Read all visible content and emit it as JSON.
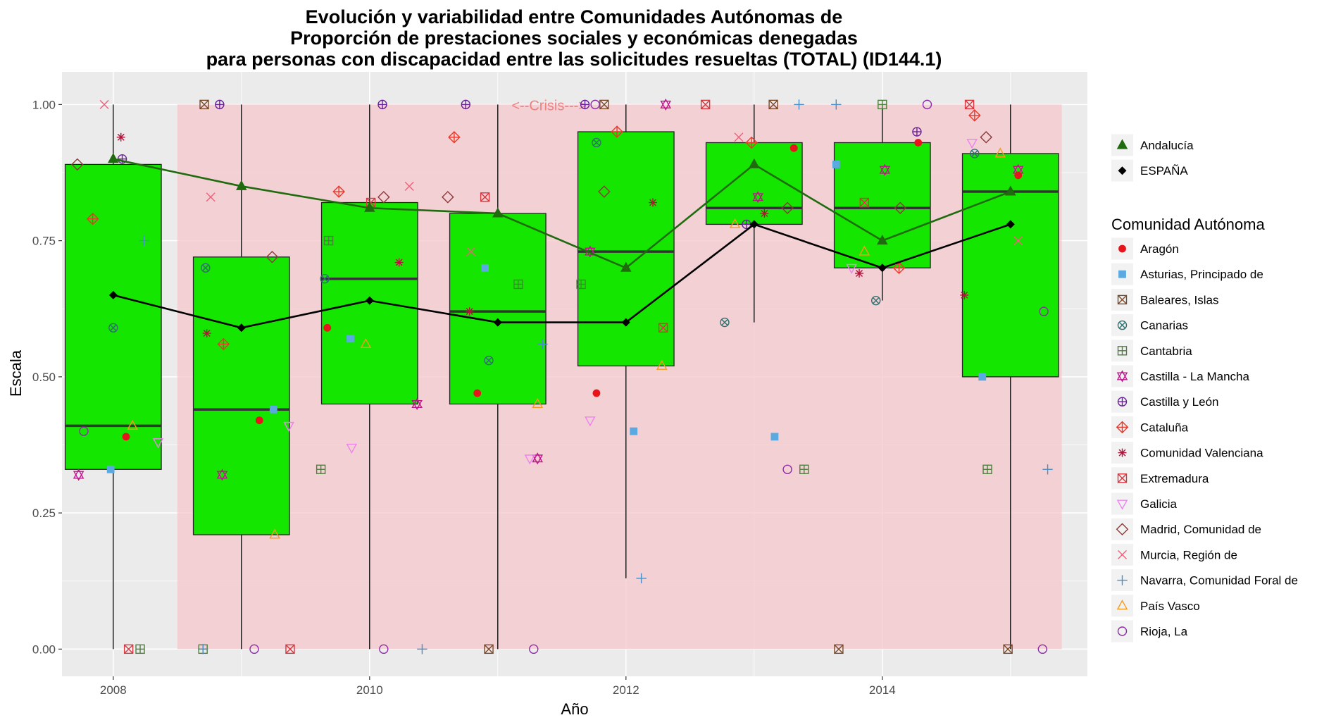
{
  "chart_data": {
    "type": "box",
    "title_lines": [
      "Evolución y variabilidad entre Comunidades Autónomas de",
      "Proporción de prestaciones sociales y económicas denegadas",
      "para personas con discapacidad entre las solicitudes resueltas (TOTAL) (ID144.1)"
    ],
    "xlabel": "Año",
    "ylabel": "Escala",
    "xlim": [
      2007.6,
      2015.6
    ],
    "ylim": [
      -0.05,
      1.06
    ],
    "x_ticks": [
      2008,
      2010,
      2012,
      2014
    ],
    "y_ticks": [
      0,
      0.25,
      0.5,
      0.75,
      1.0
    ],
    "x_tick_labels": [
      "2008",
      "2010",
      "2012",
      "2014"
    ],
    "y_tick_labels": [
      "0.00",
      "0.25",
      "0.50",
      "0.75",
      "1.00"
    ],
    "crisis_band": {
      "from": 2008.5,
      "to": 2015.4,
      "label": "<--Crisis--->",
      "color": "#f4c7cc"
    },
    "colors": {
      "panel": "#ebebeb",
      "grid": "#ffffff",
      "box_fill": "#14e600",
      "andalucia": "#1f6b0e",
      "espana": "#000000"
    },
    "boxes": [
      {
        "x": 2008,
        "lower": 0.0,
        "q1": 0.33,
        "median": 0.41,
        "q3": 0.89,
        "upper": 1.0
      },
      {
        "x": 2009,
        "lower": 0.0,
        "q1": 0.21,
        "median": 0.44,
        "q3": 0.72,
        "upper": 1.0
      },
      {
        "x": 2010,
        "lower": 0.0,
        "q1": 0.45,
        "median": 0.68,
        "q3": 0.82,
        "upper": 1.0
      },
      {
        "x": 2011,
        "lower": 0.0,
        "q1": 0.45,
        "median": 0.62,
        "q3": 0.8,
        "upper": 1.0
      },
      {
        "x": 2012,
        "lower": 0.13,
        "q1": 0.52,
        "median": 0.73,
        "q3": 0.95,
        "upper": 1.0
      },
      {
        "x": 2013,
        "lower": 0.6,
        "q1": 0.78,
        "median": 0.81,
        "q3": 0.93,
        "upper": 1.0
      },
      {
        "x": 2014,
        "lower": 0.64,
        "q1": 0.7,
        "median": 0.81,
        "q3": 0.93,
        "upper": 1.0
      },
      {
        "x": 2015,
        "lower": 0.0,
        "q1": 0.5,
        "median": 0.84,
        "q3": 0.91,
        "upper": 1.0
      }
    ],
    "series": [
      {
        "name": "Andalucía",
        "color": "#1f6b0e",
        "marker": "triangle",
        "x": [
          2008,
          2009,
          2010,
          2011,
          2012,
          2013,
          2014,
          2015
        ],
        "values": [
          0.9,
          0.85,
          0.81,
          0.8,
          0.7,
          0.89,
          0.75,
          0.84
        ]
      },
      {
        "name": "ESPAÑA",
        "color": "#000000",
        "marker": "diamond",
        "x": [
          2008,
          2009,
          2010,
          2011,
          2012,
          2013,
          2014,
          2015
        ],
        "values": [
          0.65,
          0.59,
          0.64,
          0.6,
          0.6,
          0.78,
          0.7,
          0.78
        ]
      }
    ],
    "legend_top": [
      {
        "name": "Andalucía",
        "marker": "triangle",
        "color": "#1f6b0e"
      },
      {
        "name": "ESPAÑA",
        "marker": "diamond",
        "color": "#000000"
      }
    ],
    "legend_title": "Comunidad Autónoma",
    "legend_communities": [
      {
        "name": "Aragón",
        "marker": "dot",
        "color": "#e8141b"
      },
      {
        "name": "Asturias, Principado de",
        "marker": "square",
        "color": "#5aa9e0"
      },
      {
        "name": "Baleares, Islas",
        "marker": "boxx",
        "color": "#7a4a2a"
      },
      {
        "name": "Canarias",
        "marker": "circx",
        "color": "#2f6f6f"
      },
      {
        "name": "Cantabria",
        "marker": "boxplus",
        "color": "#4f7f3f"
      },
      {
        "name": "Castilla - La Mancha",
        "marker": "star",
        "color": "#c0168c"
      },
      {
        "name": "Castilla y León",
        "marker": "circplus",
        "color": "#6a1f9a"
      },
      {
        "name": "Cataluña",
        "marker": "diamplus",
        "color": "#e8392b"
      },
      {
        "name": "Comunidad Valenciana",
        "marker": "asterisk",
        "color": "#b3123a"
      },
      {
        "name": "Extremadura",
        "marker": "boxx",
        "color": "#d9363e"
      },
      {
        "name": "Galicia",
        "marker": "tridown",
        "color": "#ee82ee"
      },
      {
        "name": "Madrid, Comunidad de",
        "marker": "diamond",
        "color": "#8b3a3a"
      },
      {
        "name": "Murcia, Región de",
        "marker": "x",
        "color": "#f0607a"
      },
      {
        "name": "Navarra, Comunidad Foral de",
        "marker": "plus",
        "color": "#4a8ec8"
      },
      {
        "name": "País Vasco",
        "marker": "triup",
        "color": "#f59a1f"
      },
      {
        "name": "Rioja, La",
        "marker": "circle",
        "color": "#8e2ca8"
      }
    ],
    "points": [
      {
        "x": 2007.84,
        "y": 0.79,
        "community": "Cataluña"
      },
      {
        "x": 2007.93,
        "y": 1.0,
        "community": "Murcia, Región de"
      },
      {
        "x": 2007.72,
        "y": 0.89,
        "community": "Madrid, Comunidad de"
      },
      {
        "x": 2008.06,
        "y": 0.94,
        "community": "Comunidad Valenciana"
      },
      {
        "x": 2008.07,
        "y": 0.9,
        "community": "Castilla y León"
      },
      {
        "x": 2008.24,
        "y": 0.75,
        "community": "Navarra, Comunidad Foral de"
      },
      {
        "x": 2008.0,
        "y": 0.59,
        "community": "Canarias"
      },
      {
        "x": 2007.77,
        "y": 0.4,
        "community": "Rioja, La"
      },
      {
        "x": 2008.1,
        "y": 0.39,
        "community": "Aragón"
      },
      {
        "x": 2008.15,
        "y": 0.41,
        "community": "País Vasco"
      },
      {
        "x": 2008.35,
        "y": 0.38,
        "community": "Galicia"
      },
      {
        "x": 2007.98,
        "y": 0.33,
        "community": "Asturias, Principado de"
      },
      {
        "x": 2007.73,
        "y": 0.32,
        "community": "Castilla - La Mancha"
      },
      {
        "x": 2008.12,
        "y": 0.0,
        "community": "Extremadura"
      },
      {
        "x": 2008.21,
        "y": 0.0,
        "community": "Cantabria"
      },
      {
        "x": 2008.71,
        "y": 1.0,
        "community": "Baleares, Islas"
      },
      {
        "x": 2008.83,
        "y": 1.0,
        "community": "Castilla y León"
      },
      {
        "x": 2008.76,
        "y": 0.83,
        "community": "Murcia, Región de"
      },
      {
        "x": 2008.72,
        "y": 0.7,
        "community": "Canarias"
      },
      {
        "x": 2009.24,
        "y": 0.72,
        "community": "Madrid, Comunidad de"
      },
      {
        "x": 2008.73,
        "y": 0.58,
        "community": "Comunidad Valenciana"
      },
      {
        "x": 2008.86,
        "y": 0.56,
        "community": "Cataluña"
      },
      {
        "x": 2009.25,
        "y": 0.44,
        "community": "Asturias, Principado de"
      },
      {
        "x": 2009.14,
        "y": 0.42,
        "community": "Aragón"
      },
      {
        "x": 2009.37,
        "y": 0.41,
        "community": "Galicia"
      },
      {
        "x": 2008.85,
        "y": 0.32,
        "community": "Castilla - La Mancha"
      },
      {
        "x": 2009.26,
        "y": 0.21,
        "community": "País Vasco"
      },
      {
        "x": 2008.7,
        "y": 0.0,
        "community": "Cantabria"
      },
      {
        "x": 2008.7,
        "y": 0.0,
        "community": "Navarra, Comunidad Foral de"
      },
      {
        "x": 2009.1,
        "y": 0.0,
        "community": "Rioja, La"
      },
      {
        "x": 2009.38,
        "y": 0.0,
        "community": "Extremadura"
      },
      {
        "x": 2010.1,
        "y": 1.0,
        "community": "Castilla y León"
      },
      {
        "x": 2010.31,
        "y": 0.85,
        "community": "Murcia, Región de"
      },
      {
        "x": 2009.76,
        "y": 0.84,
        "community": "Cataluña"
      },
      {
        "x": 2010.11,
        "y": 0.83,
        "community": "Madrid, Comunidad de"
      },
      {
        "x": 2010.01,
        "y": 0.82,
        "community": "Extremadura"
      },
      {
        "x": 2009.68,
        "y": 0.75,
        "community": "Cantabria"
      },
      {
        "x": 2010.23,
        "y": 0.71,
        "community": "Comunidad Valenciana"
      },
      {
        "x": 2009.65,
        "y": 0.68,
        "community": "Canarias"
      },
      {
        "x": 2009.67,
        "y": 0.59,
        "community": "Aragón"
      },
      {
        "x": 2009.85,
        "y": 0.57,
        "community": "Asturias, Principado de"
      },
      {
        "x": 2009.97,
        "y": 0.56,
        "community": "País Vasco"
      },
      {
        "x": 2010.37,
        "y": 0.45,
        "community": "Castilla - La Mancha"
      },
      {
        "x": 2009.86,
        "y": 0.37,
        "community": "Galicia"
      },
      {
        "x": 2009.62,
        "y": 0.33,
        "community": "Cantabria"
      },
      {
        "x": 2010.11,
        "y": 0.0,
        "community": "Rioja, La"
      },
      {
        "x": 2010.41,
        "y": 0.0,
        "community": "Navarra, Comunidad Foral de"
      },
      {
        "x": 2010.75,
        "y": 1.0,
        "community": "Castilla y León"
      },
      {
        "x": 2010.66,
        "y": 0.94,
        "community": "Cataluña"
      },
      {
        "x": 2010.61,
        "y": 0.83,
        "community": "Madrid, Comunidad de"
      },
      {
        "x": 2010.9,
        "y": 0.83,
        "community": "Extremadura"
      },
      {
        "x": 2010.79,
        "y": 0.73,
        "community": "Murcia, Región de"
      },
      {
        "x": 2010.9,
        "y": 0.7,
        "community": "Asturias, Principado de"
      },
      {
        "x": 2011.16,
        "y": 0.67,
        "community": "Cantabria"
      },
      {
        "x": 2010.78,
        "y": 0.62,
        "community": "Comunidad Valenciana"
      },
      {
        "x": 2011.35,
        "y": 0.56,
        "community": "Navarra, Comunidad Foral de"
      },
      {
        "x": 2010.93,
        "y": 0.53,
        "community": "Canarias"
      },
      {
        "x": 2010.84,
        "y": 0.47,
        "community": "Aragón"
      },
      {
        "x": 2011.31,
        "y": 0.45,
        "community": "País Vasco"
      },
      {
        "x": 2011.31,
        "y": 0.35,
        "community": "Castilla - La Mancha"
      },
      {
        "x": 2011.25,
        "y": 0.35,
        "community": "Galicia"
      },
      {
        "x": 2010.93,
        "y": 0.0,
        "community": "Baleares, Islas"
      },
      {
        "x": 2011.28,
        "y": 0.0,
        "community": "Rioja, La"
      },
      {
        "x": 2011.68,
        "y": 1.0,
        "community": "Castilla y León"
      },
      {
        "x": 2011.83,
        "y": 1.0,
        "community": "Baleares, Islas"
      },
      {
        "x": 2011.76,
        "y": 1.0,
        "community": "Rioja, La"
      },
      {
        "x": 2011.93,
        "y": 0.95,
        "community": "Cataluña"
      },
      {
        "x": 2011.77,
        "y": 0.93,
        "community": "Canarias"
      },
      {
        "x": 2011.83,
        "y": 0.84,
        "community": "Madrid, Comunidad de"
      },
      {
        "x": 2012.21,
        "y": 0.82,
        "community": "Comunidad Valenciana"
      },
      {
        "x": 2011.72,
        "y": 0.73,
        "community": "Castilla - La Mancha"
      },
      {
        "x": 2011.65,
        "y": 0.67,
        "community": "Cantabria"
      },
      {
        "x": 2012.29,
        "y": 0.59,
        "community": "Extremadura"
      },
      {
        "x": 2012.28,
        "y": 0.52,
        "community": "País Vasco"
      },
      {
        "x": 2011.77,
        "y": 0.47,
        "community": "Aragón"
      },
      {
        "x": 2011.72,
        "y": 0.42,
        "community": "Galicia"
      },
      {
        "x": 2012.06,
        "y": 0.4,
        "community": "Asturias, Principado de"
      },
      {
        "x": 2012.12,
        "y": 0.13,
        "community": "Navarra, Comunidad Foral de"
      },
      {
        "x": 2012.31,
        "y": 1.0,
        "community": "Castilla - La Mancha"
      },
      {
        "x": 2012.62,
        "y": 1.0,
        "community": "Extremadura"
      },
      {
        "x": 2013.15,
        "y": 1.0,
        "community": "Baleares, Islas"
      },
      {
        "x": 2013.35,
        "y": 1.0,
        "community": "Navarra, Comunidad Foral de"
      },
      {
        "x": 2012.88,
        "y": 0.94,
        "community": "Murcia, Región de"
      },
      {
        "x": 2012.98,
        "y": 0.93,
        "community": "Cataluña"
      },
      {
        "x": 2013.31,
        "y": 0.92,
        "community": "Aragón"
      },
      {
        "x": 2013.03,
        "y": 0.83,
        "community": "Castilla - La Mancha"
      },
      {
        "x": 2013.26,
        "y": 0.81,
        "community": "Madrid, Comunidad de"
      },
      {
        "x": 2013.08,
        "y": 0.8,
        "community": "Comunidad Valenciana"
      },
      {
        "x": 2012.94,
        "y": 0.78,
        "community": "Castilla y León"
      },
      {
        "x": 2012.85,
        "y": 0.78,
        "community": "País Vasco"
      },
      {
        "x": 2012.77,
        "y": 0.6,
        "community": "Canarias"
      },
      {
        "x": 2013.16,
        "y": 0.39,
        "community": "Asturias, Principado de"
      },
      {
        "x": 2013.26,
        "y": 0.33,
        "community": "Rioja, La"
      },
      {
        "x": 2013.39,
        "y": 0.33,
        "community": "Cantabria"
      },
      {
        "x": 2013.64,
        "y": 1.0,
        "community": "Navarra, Comunidad Foral de"
      },
      {
        "x": 2014.0,
        "y": 1.0,
        "community": "Cantabria"
      },
      {
        "x": 2014.35,
        "y": 1.0,
        "community": "Rioja, La"
      },
      {
        "x": 2014.27,
        "y": 0.95,
        "community": "Castilla y León"
      },
      {
        "x": 2014.28,
        "y": 0.93,
        "community": "Aragón"
      },
      {
        "x": 2013.64,
        "y": 0.89,
        "community": "Asturias, Principado de"
      },
      {
        "x": 2014.02,
        "y": 0.88,
        "community": "Castilla - La Mancha"
      },
      {
        "x": 2013.86,
        "y": 0.82,
        "community": "Extremadura"
      },
      {
        "x": 2014.14,
        "y": 0.81,
        "community": "Madrid, Comunidad de"
      },
      {
        "x": 2013.86,
        "y": 0.73,
        "community": "País Vasco"
      },
      {
        "x": 2013.76,
        "y": 0.7,
        "community": "Galicia"
      },
      {
        "x": 2014.13,
        "y": 0.7,
        "community": "Cataluña"
      },
      {
        "x": 2013.82,
        "y": 0.69,
        "community": "Comunidad Valenciana"
      },
      {
        "x": 2013.95,
        "y": 0.64,
        "community": "Canarias"
      },
      {
        "x": 2013.66,
        "y": 0.0,
        "community": "Baleares, Islas"
      },
      {
        "x": 2014.68,
        "y": 1.0,
        "community": "Extremadura"
      },
      {
        "x": 2014.72,
        "y": 0.98,
        "community": "Cataluña"
      },
      {
        "x": 2014.81,
        "y": 0.94,
        "community": "Madrid, Comunidad de"
      },
      {
        "x": 2014.7,
        "y": 0.93,
        "community": "Galicia"
      },
      {
        "x": 2014.72,
        "y": 0.91,
        "community": "Canarias"
      },
      {
        "x": 2014.92,
        "y": 0.91,
        "community": "País Vasco"
      },
      {
        "x": 2015.06,
        "y": 0.88,
        "community": "Castilla - La Mancha"
      },
      {
        "x": 2015.06,
        "y": 0.87,
        "community": "Aragón"
      },
      {
        "x": 2015.06,
        "y": 0.75,
        "community": "Murcia, Región de"
      },
      {
        "x": 2014.64,
        "y": 0.65,
        "community": "Comunidad Valenciana"
      },
      {
        "x": 2015.26,
        "y": 0.62,
        "community": "Rioja, La"
      },
      {
        "x": 2014.78,
        "y": 0.5,
        "community": "Asturias, Principado de"
      },
      {
        "x": 2014.82,
        "y": 0.33,
        "community": "Cantabria"
      },
      {
        "x": 2015.29,
        "y": 0.33,
        "community": "Navarra, Comunidad Foral de"
      },
      {
        "x": 2014.98,
        "y": 0.0,
        "community": "Baleares, Islas"
      },
      {
        "x": 2015.25,
        "y": 0.0,
        "community": "Rioja, La"
      }
    ]
  }
}
